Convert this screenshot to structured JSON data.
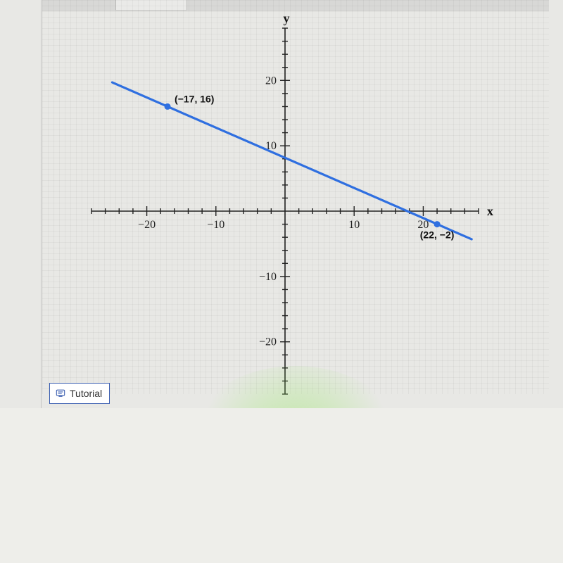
{
  "chart": {
    "type": "line",
    "x_axis_label": "x",
    "y_axis_label": "y",
    "xlim": [
      -28,
      28
    ],
    "ylim": [
      -28,
      28
    ],
    "x_ticks_labeled": [
      -20,
      -10,
      10,
      20
    ],
    "y_ticks_labeled": [
      -20,
      -10,
      10,
      20
    ],
    "tick_step": 2,
    "major_tick_step": 10,
    "axis_color": "#222222",
    "background_color": "#e8e8e5",
    "grid_color": "rgba(0,0,0,0.04)",
    "line": {
      "color": "#2f6fe0",
      "width": 3.2,
      "from": [
        -25,
        19.7
      ],
      "to": [
        27,
        -4.3
      ]
    },
    "points": [
      {
        "xy": [
          -17,
          16
        ],
        "label": "(−17, 16)",
        "label_side": "right",
        "color": "#2f6fe0"
      },
      {
        "xy": [
          22,
          -2
        ],
        "label": "(22, −2)",
        "label_side": "below",
        "color": "#2f6fe0"
      }
    ],
    "tick_label_fontsize": 16,
    "tick_label_font": "Georgia",
    "axis_label_fontsize": 18,
    "point_label_fontsize": 14,
    "point_radius": 4.5
  },
  "tutorial_button": {
    "label": "Tutorial"
  }
}
